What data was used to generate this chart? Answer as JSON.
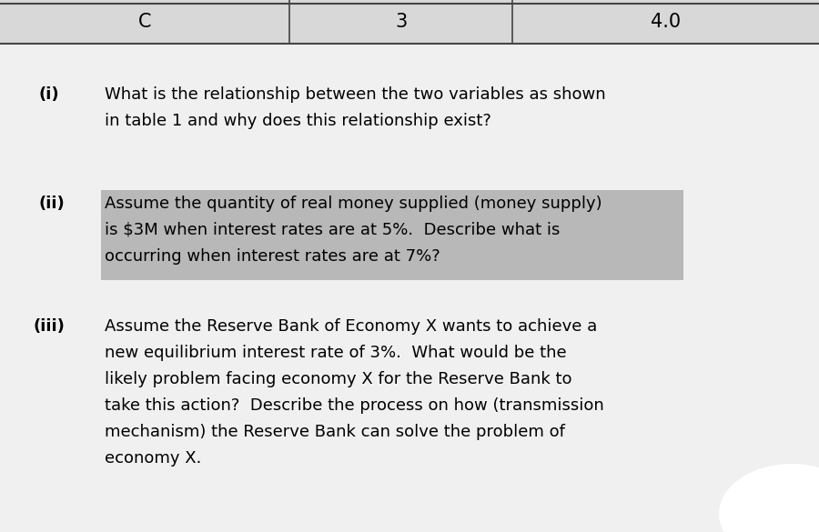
{
  "bg_color": "#c8c8c8",
  "header_bg_color": "#d8d8d8",
  "body_bg_color": "#f0f0f0",
  "header_line_color": "#444444",
  "highlight_color": "#b8b8b8",
  "text_color": "#000000",
  "col1_label": "C",
  "col2_label": "3",
  "col3_label": "4.0",
  "item_i_label": "(i)",
  "item_i_text_line1": "What is the relationship between the two variables as shown",
  "item_i_text_line2": "in table 1 and why does this relationship exist?",
  "item_ii_label": "(ii)",
  "item_ii_text_line1": "Assume the quantity of real money supplied (money supply)",
  "item_ii_text_line2": "is $3M when interest rates are at 5%.  Describe what is",
  "item_ii_text_line3": "occurring when interest rates are at 7%?",
  "item_iii_label": "(iii)",
  "item_iii_text_line1": "Assume the Reserve Bank of Economy X wants to achieve a",
  "item_iii_text_line2": "new equilibrium interest rate of 3%.  What would be the",
  "item_iii_text_line3": "likely problem facing economy X for the Reserve Bank to",
  "item_iii_text_line4": "take this action?  Describe the process on how (transmission",
  "item_iii_text_line5": "mechanism) the Reserve Bank can solve the problem of",
  "item_iii_text_line6": "economy X.",
  "font_size_header": 15,
  "font_size_body": 13,
  "font_size_label": 13
}
